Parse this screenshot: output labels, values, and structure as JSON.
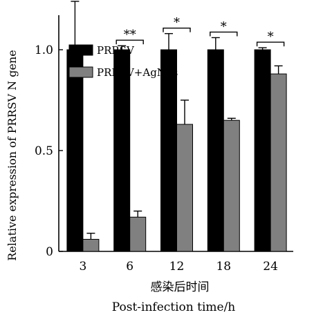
{
  "chart_data": {
    "type": "bar",
    "categories": [
      "3",
      "6",
      "12",
      "18",
      "24"
    ],
    "series": [
      {
        "name": "PRRSV",
        "values": [
          1.0,
          1.0,
          1.0,
          1.0,
          1.0
        ],
        "errors": [
          0.24,
          0.02,
          0.08,
          0.06,
          0.01
        ],
        "color": "#000000"
      },
      {
        "name": "PRRSV+AgNPs",
        "values": [
          0.06,
          0.17,
          0.63,
          0.65,
          0.88
        ],
        "errors": [
          0.03,
          0.03,
          0.12,
          0.01,
          0.04
        ],
        "color": "#808080"
      }
    ],
    "significance": [
      "*",
      "**",
      "*",
      "*",
      "*"
    ],
    "ylim": [
      0,
      2.3
    ],
    "yticks": [
      "0",
      "0.5",
      "1.0",
      "1.5",
      "2.0"
    ],
    "ytick_values": [
      0,
      0.5,
      1.0,
      1.5,
      2.0
    ],
    "ylabel": "Relative expression of PRRSV N gene",
    "xlabel_cn": "感染后时间",
    "xlabel_en": "Post-infection time/h",
    "legend_position": "top-left",
    "grid": false
  }
}
